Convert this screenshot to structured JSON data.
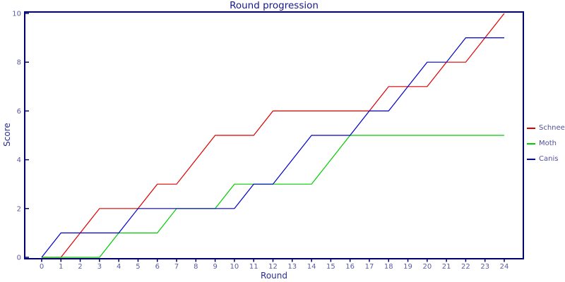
{
  "chart_data": {
    "type": "line",
    "title": "Round progression",
    "xlabel": "Round",
    "ylabel": "Score",
    "xlim": [
      0,
      24
    ],
    "ylim": [
      0,
      10
    ],
    "xticks": [
      0,
      1,
      2,
      3,
      4,
      5,
      6,
      7,
      8,
      9,
      10,
      11,
      12,
      13,
      14,
      15,
      16,
      17,
      18,
      19,
      20,
      21,
      22,
      23,
      24
    ],
    "yticks": [
      0,
      2,
      4,
      6,
      8,
      10
    ],
    "grid": false,
    "legend_position": "right-outside",
    "x": [
      0,
      1,
      2,
      3,
      4,
      5,
      6,
      7,
      8,
      9,
      10,
      11,
      12,
      13,
      14,
      15,
      16,
      17,
      18,
      19,
      20,
      21,
      22,
      23,
      24
    ],
    "series": [
      {
        "name": "Schnee",
        "color": "#dd0000",
        "values": [
          0,
          0,
          1,
          2,
          2,
          2,
          3,
          3,
          4,
          5,
          5,
          5,
          6,
          6,
          6,
          6,
          6,
          6,
          7,
          7,
          7,
          8,
          8,
          9,
          10
        ]
      },
      {
        "name": "Moth",
        "color": "#00cc00",
        "values": [
          0,
          0,
          0,
          0,
          1,
          1,
          1,
          2,
          2,
          2,
          3,
          3,
          3,
          3,
          3,
          4,
          5,
          5,
          5,
          5,
          5,
          5,
          5,
          5,
          5
        ]
      },
      {
        "name": "Canis",
        "color": "#0000cc",
        "values": [
          0,
          1,
          1,
          1,
          1,
          2,
          2,
          2,
          2,
          2,
          2,
          3,
          3,
          4,
          5,
          5,
          5,
          6,
          6,
          7,
          8,
          8,
          9,
          9,
          9
        ]
      }
    ]
  },
  "colors": {
    "frame": "#00006e",
    "tick_label": "#5a5aa2",
    "title_text": "#16168c",
    "axis_label_text": "#2b2b92",
    "legend_text": "#50509a",
    "background": "#ffffff"
  }
}
